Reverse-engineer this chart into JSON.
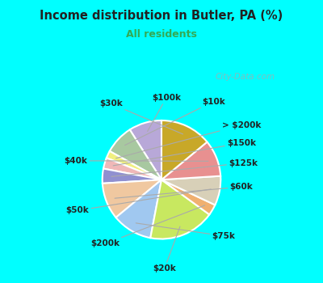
{
  "title": "Income distribution in Butler, PA (%)",
  "subtitle": "All residents",
  "title_color": "#222222",
  "subtitle_color": "#33aa55",
  "background_top": "#00ffff",
  "background_chart_color": "#d8ede0",
  "watermark": "City-Data.com",
  "slices": [
    {
      "label": "$100k",
      "value": 9,
      "color": "#b8a8d8"
    },
    {
      "label": "$10k",
      "value": 8,
      "color": "#a8c8a0"
    },
    {
      "label": "> $200k",
      "value": 2,
      "color": "#f0f080"
    },
    {
      "label": "$150k",
      "value": 3,
      "color": "#f0b8b8"
    },
    {
      "label": "$125k",
      "value": 4,
      "color": "#9090d0"
    },
    {
      "label": "$60k",
      "value": 10,
      "color": "#f0c8a0"
    },
    {
      "label": "$75k",
      "value": 11,
      "color": "#a0c8f0"
    },
    {
      "label": "$20k",
      "value": 18,
      "color": "#c8e860"
    },
    {
      "label": "$200k",
      "value": 3,
      "color": "#f0b070"
    },
    {
      "label": "$50k",
      "value": 8,
      "color": "#d8d0b8"
    },
    {
      "label": "$40k",
      "value": 10,
      "color": "#e89090"
    },
    {
      "label": "$30k",
      "value": 14,
      "color": "#c8a828"
    }
  ],
  "label_fontsize": 7.5,
  "label_color": "#222222",
  "line_color": "#aaaaaa"
}
